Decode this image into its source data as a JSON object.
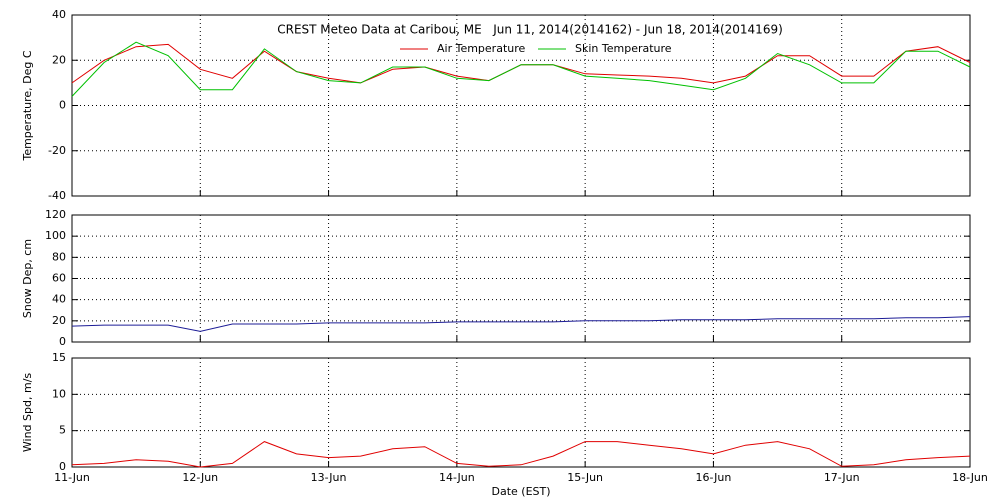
{
  "chart_data": [
    {
      "type": "line",
      "title": "CREST Meteo Data at Caribou, ME   Jun 11, 2014(2014162) - Jun 18, 2014(2014169)",
      "ylabel": "Temperature, Deg C",
      "x": [
        0,
        0.25,
        0.5,
        0.75,
        1,
        1.25,
        1.5,
        1.75,
        2,
        2.25,
        2.5,
        2.75,
        3,
        3.25,
        3.5,
        3.75,
        4,
        4.25,
        4.5,
        4.75,
        5,
        5.25,
        5.5,
        5.75,
        6,
        6.25,
        6.5,
        6.75,
        7
      ],
      "series": [
        {
          "name": "Air Temperature",
          "color": "#e00000",
          "values": [
            10,
            20,
            26,
            27,
            16,
            12,
            24,
            15,
            12,
            10,
            16,
            17,
            13,
            11,
            18,
            18,
            14,
            13.5,
            13,
            12,
            10,
            13,
            22,
            22,
            13,
            13,
            24,
            26,
            19
          ]
        },
        {
          "name": "Skin Temperature",
          "color": "#00c000",
          "values": [
            4,
            19,
            28,
            22,
            7,
            7,
            25,
            15,
            11,
            10,
            17,
            17,
            12,
            11,
            18,
            18,
            13,
            12,
            11,
            9,
            7,
            12,
            23,
            18,
            10,
            10,
            24,
            24,
            17
          ]
        }
      ],
      "xlim": [
        0,
        7
      ],
      "xticks": [
        0,
        1,
        2,
        3,
        4,
        5,
        6,
        7
      ],
      "ylim": [
        -40,
        40
      ],
      "yticks": [
        -40,
        -20,
        0,
        20,
        40
      ],
      "grid": true
    },
    {
      "type": "line",
      "ylabel": "Snow Dep, cm",
      "x": [
        0,
        0.25,
        0.5,
        0.75,
        1,
        1.25,
        1.5,
        1.75,
        2,
        2.25,
        2.5,
        2.75,
        3,
        3.25,
        3.5,
        3.75,
        4,
        4.25,
        4.5,
        4.75,
        5,
        5.25,
        5.5,
        5.75,
        6,
        6.25,
        6.5,
        6.75,
        7
      ],
      "values": [
        15,
        16,
        16,
        16,
        10,
        17,
        17,
        17,
        18,
        18,
        18,
        18,
        19,
        19,
        19,
        19,
        20,
        20,
        20,
        21,
        21,
        21,
        22,
        22,
        22,
        22,
        23,
        23,
        24
      ],
      "color": "#1c1c96",
      "xlim": [
        0,
        7
      ],
      "xticks": [
        0,
        1,
        2,
        3,
        4,
        5,
        6,
        7
      ],
      "ylim": [
        0,
        120
      ],
      "yticks": [
        0,
        20,
        40,
        60,
        80,
        100,
        120
      ],
      "grid": true
    },
    {
      "type": "line",
      "ylabel": "Wind Spd, m/s",
      "xlabel": "Date (EST)",
      "x": [
        0,
        0.25,
        0.5,
        0.75,
        1,
        1.25,
        1.5,
        1.75,
        2,
        2.25,
        2.5,
        2.75,
        3,
        3.25,
        3.5,
        3.75,
        4,
        4.25,
        4.5,
        4.75,
        5,
        5.25,
        5.5,
        5.75,
        6,
        6.25,
        6.5,
        6.75,
        7
      ],
      "values": [
        0.3,
        0.5,
        1,
        0.8,
        0,
        0.5,
        3.5,
        1.8,
        1.3,
        1.5,
        2.5,
        2.8,
        0.5,
        0.1,
        0.3,
        1.5,
        3.5,
        3.5,
        3,
        2.5,
        1.8,
        3,
        3.5,
        2.5,
        0.1,
        0.3,
        1,
        1.3,
        1.5
      ],
      "color": "#e00000",
      "xlim": [
        0,
        7
      ],
      "xticks": [
        {
          "value": 0,
          "label": "11-Jun"
        },
        {
          "value": 1,
          "label": "12-Jun"
        },
        {
          "value": 2,
          "label": "13-Jun"
        },
        {
          "value": 3,
          "label": "14-Jun"
        },
        {
          "value": 4,
          "label": "15-Jun"
        },
        {
          "value": 5,
          "label": "16-Jun"
        },
        {
          "value": 6,
          "label": "17-Jun"
        },
        {
          "value": 7,
          "label": "18-Jun"
        }
      ],
      "ylim": [
        0,
        15
      ],
      "yticks": [
        0,
        5,
        10,
        15
      ],
      "grid": true
    }
  ]
}
